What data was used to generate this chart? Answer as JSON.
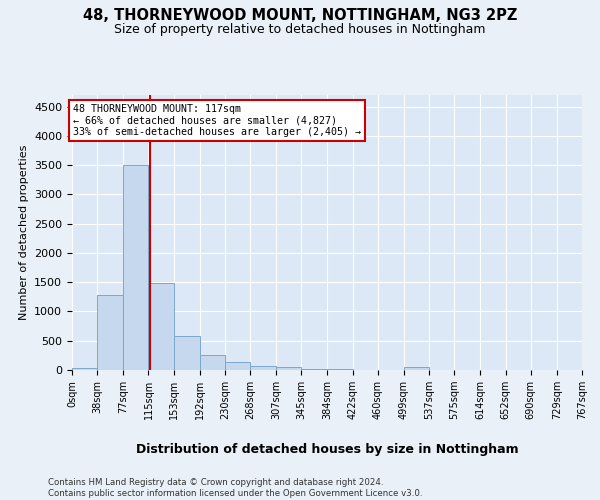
{
  "title1": "48, THORNEYWOOD MOUNT, NOTTINGHAM, NG3 2PZ",
  "title2": "Size of property relative to detached houses in Nottingham",
  "xlabel": "Distribution of detached houses by size in Nottingham",
  "ylabel": "Number of detached properties",
  "bin_edges": [
    0,
    38,
    77,
    115,
    153,
    192,
    230,
    268,
    307,
    345,
    384,
    422,
    460,
    499,
    537,
    575,
    614,
    652,
    690,
    729,
    767
  ],
  "bar_heights": [
    30,
    1275,
    3500,
    1480,
    580,
    260,
    130,
    75,
    50,
    25,
    15,
    5,
    0,
    50,
    0,
    0,
    0,
    0,
    0,
    0
  ],
  "bar_color": "#c5d8ed",
  "bar_edge_color": "#7aa8cc",
  "property_line_x": 117,
  "annotation_text1": "48 THORNEYWOOD MOUNT: 117sqm",
  "annotation_text2": "← 66% of detached houses are smaller (4,827)",
  "annotation_text3": "33% of semi-detached houses are larger (2,405) →",
  "annotation_box_color": "#ffffff",
  "annotation_box_edge": "#cc0000",
  "vline_color": "#cc0000",
  "ylim": [
    0,
    4700
  ],
  "yticks": [
    0,
    500,
    1000,
    1500,
    2000,
    2500,
    3000,
    3500,
    4000,
    4500
  ],
  "footer1": "Contains HM Land Registry data © Crown copyright and database right 2024.",
  "footer2": "Contains public sector information licensed under the Open Government Licence v3.0.",
  "bg_color": "#eaf0f8",
  "plot_bg_color": "#dce8f5",
  "title1_fontsize": 10.5,
  "title2_fontsize": 9,
  "grid_color": "#ffffff",
  "tick_label_fontsize": 7,
  "ylabel_fontsize": 8,
  "xlabel_fontsize": 9
}
